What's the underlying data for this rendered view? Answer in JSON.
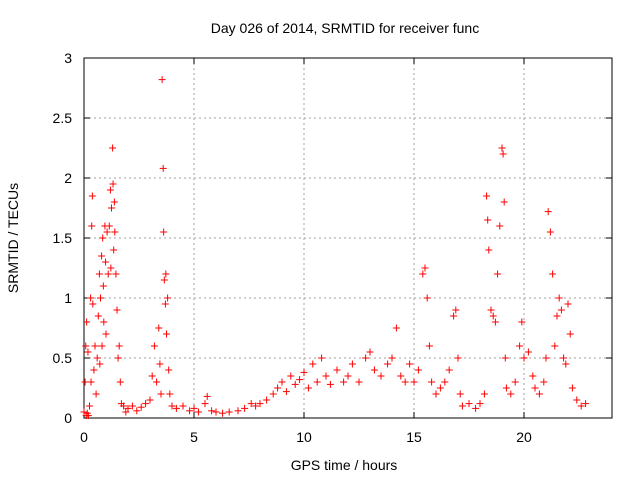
{
  "chart_data": {
    "type": "scatter",
    "title": "Day 026 of 2014, SRMTID for receiver func",
    "xlabel": "GPS time / hours",
    "ylabel": "SRMTID / TECUs",
    "xlim": [
      0,
      24
    ],
    "ylim": [
      0,
      3
    ],
    "x_ticks": [
      0,
      5,
      10,
      15,
      20
    ],
    "y_ticks": [
      0,
      0.5,
      1,
      1.5,
      2,
      2.5,
      3
    ],
    "x_tick_labels": [
      "0",
      "5",
      "10",
      "15",
      "20"
    ],
    "y_tick_labels": [
      "0",
      "0.5",
      "1",
      "1.5",
      "2",
      "2.5",
      "3"
    ],
    "grid": true,
    "marker": "+",
    "color": "#ff0000",
    "series": [
      {
        "name": "SRMTID",
        "points": [
          [
            0.0,
            0.05
          ],
          [
            0.05,
            0.3
          ],
          [
            0.08,
            0.6
          ],
          [
            0.1,
            0.02
          ],
          [
            0.12,
            0.8
          ],
          [
            0.15,
            0.04
          ],
          [
            0.18,
            0.55
          ],
          [
            0.2,
            0.02
          ],
          [
            0.25,
            0.1
          ],
          [
            0.3,
            1.0
          ],
          [
            0.32,
            0.3
          ],
          [
            0.35,
            1.6
          ],
          [
            0.38,
            1.85
          ],
          [
            0.4,
            0.95
          ],
          [
            0.45,
            0.4
          ],
          [
            0.5,
            0.6
          ],
          [
            0.55,
            0.2
          ],
          [
            0.6,
            0.5
          ],
          [
            0.65,
            0.85
          ],
          [
            0.7,
            1.2
          ],
          [
            0.72,
            0.45
          ],
          [
            0.75,
            1.0
          ],
          [
            0.8,
            1.35
          ],
          [
            0.82,
            0.6
          ],
          [
            0.85,
            1.5
          ],
          [
            0.88,
            1.1
          ],
          [
            0.9,
            0.8
          ],
          [
            0.95,
            1.6
          ],
          [
            0.98,
            1.3
          ],
          [
            1.0,
            0.7
          ],
          [
            1.05,
            1.55
          ],
          [
            1.1,
            1.2
          ],
          [
            1.15,
            1.6
          ],
          [
            1.2,
            1.9
          ],
          [
            1.22,
            1.25
          ],
          [
            1.25,
            1.75
          ],
          [
            1.3,
            2.25
          ],
          [
            1.32,
            1.95
          ],
          [
            1.35,
            1.4
          ],
          [
            1.38,
            1.8
          ],
          [
            1.4,
            1.55
          ],
          [
            1.45,
            1.2
          ],
          [
            1.5,
            0.9
          ],
          [
            1.55,
            0.5
          ],
          [
            1.6,
            0.6
          ],
          [
            1.65,
            0.3
          ],
          [
            1.7,
            0.12
          ],
          [
            1.8,
            0.1
          ],
          [
            1.9,
            0.05
          ],
          [
            2.0,
            0.08
          ],
          [
            2.2,
            0.1
          ],
          [
            2.4,
            0.06
          ],
          [
            2.6,
            0.09
          ],
          [
            2.8,
            0.12
          ],
          [
            3.0,
            0.15
          ],
          [
            3.1,
            0.35
          ],
          [
            3.2,
            0.6
          ],
          [
            3.3,
            0.3
          ],
          [
            3.4,
            0.75
          ],
          [
            3.45,
            0.45
          ],
          [
            3.5,
            0.2
          ],
          [
            3.55,
            2.82
          ],
          [
            3.6,
            2.08
          ],
          [
            3.62,
            1.55
          ],
          [
            3.65,
            1.15
          ],
          [
            3.7,
            0.95
          ],
          [
            3.72,
            1.2
          ],
          [
            3.75,
            0.7
          ],
          [
            3.8,
            1.0
          ],
          [
            3.85,
            0.4
          ],
          [
            3.9,
            0.2
          ],
          [
            4.0,
            0.1
          ],
          [
            4.2,
            0.08
          ],
          [
            4.5,
            0.1
          ],
          [
            4.8,
            0.06
          ],
          [
            5.0,
            0.08
          ],
          [
            5.2,
            0.05
          ],
          [
            5.5,
            0.12
          ],
          [
            5.6,
            0.18
          ],
          [
            5.8,
            0.06
          ],
          [
            6.0,
            0.05
          ],
          [
            6.3,
            0.04
          ],
          [
            6.6,
            0.05
          ],
          [
            7.0,
            0.06
          ],
          [
            7.3,
            0.08
          ],
          [
            7.6,
            0.12
          ],
          [
            7.8,
            0.1
          ],
          [
            8.0,
            0.12
          ],
          [
            8.3,
            0.15
          ],
          [
            8.6,
            0.2
          ],
          [
            8.8,
            0.25
          ],
          [
            9.0,
            0.3
          ],
          [
            9.2,
            0.22
          ],
          [
            9.4,
            0.35
          ],
          [
            9.6,
            0.28
          ],
          [
            9.8,
            0.32
          ],
          [
            10.0,
            0.38
          ],
          [
            10.2,
            0.25
          ],
          [
            10.4,
            0.45
          ],
          [
            10.6,
            0.3
          ],
          [
            10.8,
            0.5
          ],
          [
            11.0,
            0.35
          ],
          [
            11.2,
            0.28
          ],
          [
            11.5,
            0.4
          ],
          [
            11.8,
            0.3
          ],
          [
            12.0,
            0.35
          ],
          [
            12.2,
            0.45
          ],
          [
            12.5,
            0.3
          ],
          [
            12.8,
            0.5
          ],
          [
            13.0,
            0.55
          ],
          [
            13.2,
            0.4
          ],
          [
            13.5,
            0.35
          ],
          [
            13.8,
            0.45
          ],
          [
            14.0,
            0.5
          ],
          [
            14.2,
            0.75
          ],
          [
            14.4,
            0.35
          ],
          [
            14.6,
            0.3
          ],
          [
            14.8,
            0.45
          ],
          [
            15.0,
            0.3
          ],
          [
            15.2,
            0.4
          ],
          [
            15.4,
            1.2
          ],
          [
            15.5,
            1.25
          ],
          [
            15.6,
            1.0
          ],
          [
            15.7,
            0.6
          ],
          [
            15.8,
            0.3
          ],
          [
            16.0,
            0.2
          ],
          [
            16.2,
            0.25
          ],
          [
            16.4,
            0.3
          ],
          [
            16.6,
            0.4
          ],
          [
            16.8,
            0.85
          ],
          [
            16.9,
            0.9
          ],
          [
            17.0,
            0.5
          ],
          [
            17.1,
            0.2
          ],
          [
            17.2,
            0.1
          ],
          [
            17.5,
            0.12
          ],
          [
            17.8,
            0.08
          ],
          [
            18.0,
            0.12
          ],
          [
            18.2,
            0.2
          ],
          [
            18.3,
            1.85
          ],
          [
            18.35,
            1.65
          ],
          [
            18.4,
            1.4
          ],
          [
            18.5,
            0.9
          ],
          [
            18.6,
            0.85
          ],
          [
            18.7,
            0.8
          ],
          [
            18.8,
            1.2
          ],
          [
            18.9,
            1.6
          ],
          [
            19.0,
            2.25
          ],
          [
            19.05,
            2.2
          ],
          [
            19.1,
            1.8
          ],
          [
            19.15,
            0.5
          ],
          [
            19.2,
            0.25
          ],
          [
            19.4,
            0.2
          ],
          [
            19.6,
            0.3
          ],
          [
            19.8,
            0.6
          ],
          [
            19.9,
            0.8
          ],
          [
            20.0,
            0.5
          ],
          [
            20.2,
            0.55
          ],
          [
            20.4,
            0.35
          ],
          [
            20.5,
            0.25
          ],
          [
            20.7,
            0.2
          ],
          [
            20.9,
            0.3
          ],
          [
            21.0,
            0.5
          ],
          [
            21.1,
            1.72
          ],
          [
            21.2,
            1.55
          ],
          [
            21.3,
            1.2
          ],
          [
            21.4,
            0.6
          ],
          [
            21.5,
            0.85
          ],
          [
            21.6,
            1.0
          ],
          [
            21.7,
            0.9
          ],
          [
            21.8,
            0.5
          ],
          [
            21.9,
            0.45
          ],
          [
            22.0,
            0.95
          ],
          [
            22.1,
            0.7
          ],
          [
            22.2,
            0.25
          ],
          [
            22.4,
            0.15
          ],
          [
            22.6,
            0.1
          ],
          [
            22.8,
            0.12
          ]
        ]
      }
    ]
  }
}
